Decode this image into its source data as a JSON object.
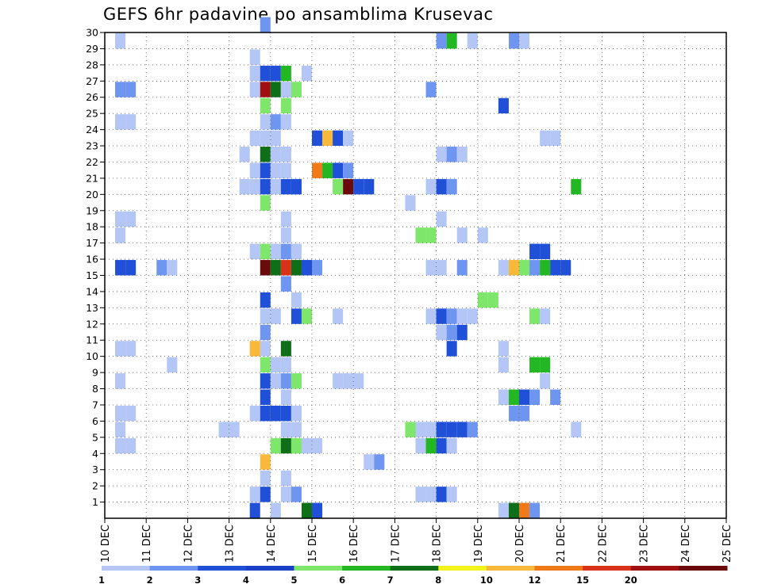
{
  "chart_data": {
    "type": "heatmap",
    "title": "GEFS 6hr padavine po ansamblima Krusevac",
    "x_tick_labels": [
      "10 DEC",
      "11 DEC",
      "12 DEC",
      "13 DEC",
      "14 DEC",
      "15 DEC",
      "16 DEC",
      "17 DEC",
      "18 DEC",
      "19 DEC",
      "20 DEC",
      "21 DEC",
      "22 DEC",
      "23 DEC",
      "24 DEC",
      "25 DEC"
    ],
    "x_range": [
      0,
      60
    ],
    "x_step": "6hr",
    "y_tick_labels": [
      "1",
      "2",
      "3",
      "4",
      "5",
      "6",
      "7",
      "8",
      "9",
      "10",
      "11",
      "12",
      "13",
      "14",
      "15",
      "16",
      "17",
      "18",
      "19",
      "20",
      "21",
      "22",
      "23",
      "24",
      "25",
      "26",
      "27",
      "28",
      "29",
      "30"
    ],
    "y_range": [
      0,
      30
    ],
    "grid": true,
    "legend_placement": "bottom",
    "legend": {
      "thresholds": [
        "1",
        "2",
        "3",
        "4",
        "5",
        "6",
        "7",
        "8",
        "10",
        "12",
        "15",
        "20"
      ],
      "colors": [
        "#b3c6f5",
        "#6e95f0",
        "#2050d8",
        "#1a3fc8",
        "#7ee66a",
        "#23b823",
        "#0f6e18",
        "#f2f21e",
        "#f8b83a",
        "#f07a1a",
        "#d8321a",
        "#a01010",
        "#6a0a0a"
      ]
    },
    "cells": [
      [
        1,
        29,
        0
      ],
      [
        1,
        26,
        1
      ],
      [
        2,
        26,
        1
      ],
      [
        1,
        24,
        0
      ],
      [
        2,
        24,
        0
      ],
      [
        1,
        18,
        0
      ],
      [
        2,
        18,
        0
      ],
      [
        1,
        17,
        0
      ],
      [
        1,
        15,
        2
      ],
      [
        2,
        15,
        2
      ],
      [
        5,
        15,
        1
      ],
      [
        6,
        15,
        0
      ],
      [
        1,
        10,
        0
      ],
      [
        2,
        10,
        0
      ],
      [
        6,
        9,
        0
      ],
      [
        1,
        8,
        0
      ],
      [
        1,
        6,
        0
      ],
      [
        2,
        6,
        0
      ],
      [
        1,
        5,
        0
      ],
      [
        1,
        4,
        0
      ],
      [
        2,
        4,
        0
      ],
      [
        14,
        28,
        0
      ],
      [
        14,
        27,
        0
      ],
      [
        15,
        27,
        2
      ],
      [
        16,
        27,
        2
      ],
      [
        17,
        27,
        5
      ],
      [
        14,
        26,
        0
      ],
      [
        15,
        26,
        11
      ],
      [
        16,
        26,
        6
      ],
      [
        17,
        26,
        0
      ],
      [
        18,
        26,
        4
      ],
      [
        15,
        25,
        4
      ],
      [
        17,
        25,
        4
      ],
      [
        15,
        24,
        0
      ],
      [
        16,
        24,
        1
      ],
      [
        17,
        24,
        0
      ],
      [
        14,
        23,
        0
      ],
      [
        15,
        23,
        0
      ],
      [
        16,
        23,
        0
      ],
      [
        13,
        22,
        0
      ],
      [
        15,
        22,
        6
      ],
      [
        16,
        22,
        0
      ],
      [
        17,
        22,
        0
      ],
      [
        14,
        21,
        0
      ],
      [
        15,
        21,
        2
      ],
      [
        16,
        21,
        0
      ],
      [
        17,
        21,
        0
      ],
      [
        13,
        20,
        0
      ],
      [
        14,
        20,
        0
      ],
      [
        15,
        20,
        2
      ],
      [
        16,
        20,
        0
      ],
      [
        17,
        20,
        2
      ],
      [
        18,
        20,
        2
      ],
      [
        15,
        19,
        4
      ],
      [
        17,
        18,
        0
      ],
      [
        17,
        17,
        0
      ],
      [
        14,
        16,
        0
      ],
      [
        15,
        16,
        4
      ],
      [
        16,
        16,
        0
      ],
      [
        17,
        16,
        1
      ],
      [
        18,
        16,
        0
      ],
      [
        15,
        15,
        12
      ],
      [
        16,
        15,
        6
      ],
      [
        17,
        15,
        10
      ],
      [
        18,
        15,
        6
      ],
      [
        19,
        15,
        2
      ],
      [
        20,
        15,
        1
      ],
      [
        17,
        14,
        1
      ],
      [
        15,
        13,
        2
      ],
      [
        18,
        13,
        0
      ],
      [
        15,
        12,
        0
      ],
      [
        16,
        12,
        0
      ],
      [
        18,
        12,
        2
      ],
      [
        19,
        12,
        4
      ],
      [
        15,
        11,
        1
      ],
      [
        15,
        10,
        0
      ],
      [
        14,
        10,
        8
      ],
      [
        17,
        10,
        6
      ],
      [
        15,
        9,
        4
      ],
      [
        16,
        9,
        0
      ],
      [
        17,
        9,
        0
      ],
      [
        15,
        8,
        2
      ],
      [
        16,
        8,
        0
      ],
      [
        17,
        8,
        1
      ],
      [
        18,
        8,
        4
      ],
      [
        15,
        7,
        2
      ],
      [
        17,
        7,
        0
      ],
      [
        14,
        6,
        0
      ],
      [
        15,
        6,
        2
      ],
      [
        16,
        6,
        2
      ],
      [
        17,
        6,
        2
      ],
      [
        18,
        6,
        0
      ],
      [
        11,
        5,
        0
      ],
      [
        12,
        5,
        0
      ],
      [
        17,
        5,
        0
      ],
      [
        18,
        5,
        0
      ],
      [
        16,
        4,
        4
      ],
      [
        17,
        4,
        6
      ],
      [
        18,
        4,
        4
      ],
      [
        19,
        4,
        0
      ],
      [
        20,
        4,
        0
      ],
      [
        15,
        3,
        8
      ],
      [
        15,
        2,
        0
      ],
      [
        17,
        2,
        0
      ],
      [
        14,
        1,
        0
      ],
      [
        15,
        1,
        2
      ],
      [
        17,
        1,
        0
      ],
      [
        18,
        1,
        1
      ],
      [
        14,
        0,
        2
      ],
      [
        16,
        0,
        0
      ],
      [
        19,
        0,
        6
      ],
      [
        20,
        0,
        2
      ],
      [
        15,
        30,
        1
      ],
      [
        19,
        27,
        0
      ],
      [
        17,
        26,
        0
      ],
      [
        20,
        23,
        2
      ],
      [
        21,
        23,
        8
      ],
      [
        22,
        23,
        2
      ],
      [
        23,
        23,
        0
      ],
      [
        20,
        21,
        9
      ],
      [
        21,
        21,
        5
      ],
      [
        22,
        21,
        2
      ],
      [
        23,
        21,
        1
      ],
      [
        22,
        20,
        4
      ],
      [
        23,
        20,
        12
      ],
      [
        24,
        20,
        2
      ],
      [
        25,
        20,
        2
      ],
      [
        22,
        12,
        0
      ],
      [
        22,
        8,
        0
      ],
      [
        23,
        8,
        0
      ],
      [
        24,
        8,
        0
      ],
      [
        32,
        29,
        1
      ],
      [
        33,
        29,
        5
      ],
      [
        35,
        29,
        0
      ],
      [
        39,
        29,
        1
      ],
      [
        40,
        29,
        0
      ],
      [
        31,
        26,
        1
      ],
      [
        38,
        25,
        2
      ],
      [
        42,
        23,
        0
      ],
      [
        43,
        23,
        0
      ],
      [
        32,
        22,
        0
      ],
      [
        33,
        22,
        1
      ],
      [
        34,
        22,
        0
      ],
      [
        32,
        20,
        2
      ],
      [
        33,
        20,
        1
      ],
      [
        31,
        20,
        0
      ],
      [
        29,
        19,
        0
      ],
      [
        32,
        18,
        0
      ],
      [
        30,
        17,
        4
      ],
      [
        31,
        17,
        4
      ],
      [
        34,
        17,
        0
      ],
      [
        36,
        17,
        0
      ],
      [
        41,
        16,
        2
      ],
      [
        42,
        16,
        2
      ],
      [
        31,
        15,
        0
      ],
      [
        32,
        15,
        0
      ],
      [
        34,
        15,
        1
      ],
      [
        38,
        15,
        0
      ],
      [
        39,
        15,
        8
      ],
      [
        40,
        15,
        4
      ],
      [
        41,
        15,
        1
      ],
      [
        42,
        15,
        5
      ],
      [
        43,
        15,
        2
      ],
      [
        36,
        13,
        4
      ],
      [
        37,
        13,
        4
      ],
      [
        31,
        12,
        0
      ],
      [
        32,
        12,
        2
      ],
      [
        33,
        12,
        1
      ],
      [
        34,
        12,
        0
      ],
      [
        35,
        12,
        0
      ],
      [
        41,
        12,
        4
      ],
      [
        42,
        12,
        0
      ],
      [
        32,
        11,
        0
      ],
      [
        33,
        11,
        1
      ],
      [
        34,
        11,
        2
      ],
      [
        33,
        10,
        2
      ],
      [
        38,
        10,
        0
      ],
      [
        38,
        9,
        0
      ],
      [
        41,
        9,
        5
      ],
      [
        42,
        9,
        5
      ],
      [
        42,
        8,
        0
      ],
      [
        38,
        7,
        0
      ],
      [
        39,
        7,
        5
      ],
      [
        40,
        7,
        2
      ],
      [
        41,
        7,
        1
      ],
      [
        43,
        7,
        1
      ],
      [
        39,
        6,
        1
      ],
      [
        40,
        6,
        1
      ],
      [
        29,
        5,
        4
      ],
      [
        30,
        5,
        0
      ],
      [
        31,
        5,
        0
      ],
      [
        32,
        5,
        2
      ],
      [
        33,
        5,
        2
      ],
      [
        34,
        5,
        2
      ],
      [
        35,
        5,
        1
      ],
      [
        30,
        4,
        0
      ],
      [
        31,
        4,
        5
      ],
      [
        32,
        4,
        2
      ],
      [
        33,
        4,
        0
      ],
      [
        25,
        3,
        0
      ],
      [
        26,
        3,
        1
      ],
      [
        30,
        1,
        0
      ],
      [
        31,
        1,
        0
      ],
      [
        32,
        1,
        2
      ],
      [
        33,
        1,
        0
      ],
      [
        38,
        0,
        0
      ],
      [
        39,
        0,
        6
      ],
      [
        40,
        0,
        9
      ],
      [
        41,
        0,
        1
      ],
      [
        45,
        20,
        5
      ],
      [
        45,
        5,
        0
      ],
      [
        44,
        15,
        2
      ]
    ]
  }
}
